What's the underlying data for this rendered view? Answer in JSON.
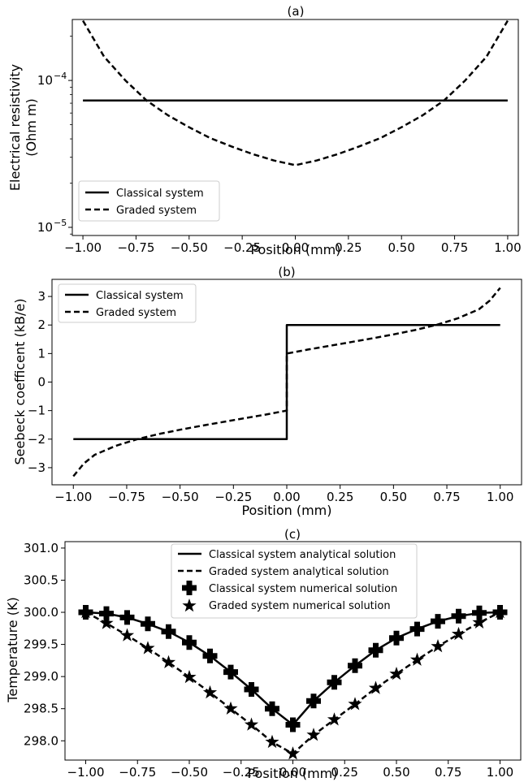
{
  "chart_data": [
    {
      "type": "line",
      "title": "(a)",
      "xlabel": "Position (mm)",
      "ylabel": [
        "Electrical resistivity",
        "(Ohm m)"
      ],
      "xlim": [
        -1.05,
        1.05
      ],
      "ylim": [
        8.8e-06,
        0.00026
      ],
      "yscale": "log",
      "x_ticks": [
        -1.0,
        -0.75,
        -0.5,
        -0.25,
        0.0,
        0.25,
        0.5,
        0.75,
        1.0
      ],
      "x_tick_labels": [
        "−1.00",
        "−0.75",
        "−0.50",
        "−0.25",
        "0.00",
        "0.25",
        "0.50",
        "0.75",
        "1.00"
      ],
      "y_ticks": [
        1e-05,
        0.0001
      ],
      "y_tick_labels": [
        {
          "base": "10",
          "exp": "−5"
        },
        {
          "base": "10",
          "exp": "−4"
        }
      ],
      "legend": {
        "position": "lower-left",
        "entries": [
          "Classical system",
          "Graded system"
        ]
      },
      "series": [
        {
          "name": "Classical system",
          "style": "solid",
          "x": [
            -1.0,
            1.0
          ],
          "y": [
            7.3e-05,
            7.3e-05
          ]
        },
        {
          "name": "Graded system",
          "style": "dashed",
          "x": [
            -1.0,
            -0.9,
            -0.8,
            -0.7,
            -0.6,
            -0.5,
            -0.4,
            -0.3,
            -0.2,
            -0.1,
            0.0,
            0.1,
            0.2,
            0.3,
            0.4,
            0.5,
            0.6,
            0.7,
            0.8,
            0.9,
            1.0
          ],
          "y": [
            0.000255,
            0.000145,
            0.0001,
            7.3e-05,
            5.8e-05,
            4.8e-05,
            4.05e-05,
            3.55e-05,
            3.15e-05,
            2.85e-05,
            2.65e-05,
            2.85e-05,
            3.15e-05,
            3.55e-05,
            4.05e-05,
            4.8e-05,
            5.8e-05,
            7.3e-05,
            0.0001,
            0.000145,
            0.000255
          ]
        }
      ]
    },
    {
      "type": "line",
      "title": "(b)",
      "xlabel": "Position (mm)",
      "ylabel": [
        "Seebeck coefficent (kB/e)"
      ],
      "xlim": [
        -1.1,
        1.1
      ],
      "ylim": [
        -3.6,
        3.6
      ],
      "yscale": "linear",
      "x_ticks": [
        -1.0,
        -0.75,
        -0.5,
        -0.25,
        0.0,
        0.25,
        0.5,
        0.75,
        1.0
      ],
      "x_tick_labels": [
        "−1.00",
        "−0.75",
        "−0.50",
        "−0.25",
        "0.00",
        "0.25",
        "0.50",
        "0.75",
        "1.00"
      ],
      "y_ticks": [
        -3,
        -2,
        -1,
        0,
        1,
        2,
        3
      ],
      "y_tick_labels": [
        "−3",
        "−2",
        "−1",
        "0",
        "1",
        "2",
        "3"
      ],
      "legend": {
        "position": "upper-left",
        "entries": [
          "Classical system",
          "Graded system"
        ]
      },
      "series": [
        {
          "name": "Classical system",
          "style": "solid",
          "x": [
            -1.0,
            0.0,
            0.0,
            1.0
          ],
          "y": [
            -2.0,
            -2.0,
            2.0,
            2.0
          ]
        },
        {
          "name": "Graded system",
          "style": "dashed",
          "x": [
            -1.0,
            -0.95,
            -0.9,
            -0.8,
            -0.7,
            -0.6,
            -0.5,
            -0.4,
            -0.3,
            -0.2,
            -0.1,
            0.0,
            0.0,
            0.1,
            0.2,
            0.3,
            0.4,
            0.5,
            0.6,
            0.7,
            0.8,
            0.9,
            0.95,
            1.0
          ],
          "y": [
            -3.3,
            -2.85,
            -2.55,
            -2.23,
            -2.0,
            -1.82,
            -1.67,
            -1.53,
            -1.4,
            -1.27,
            -1.14,
            -1.0,
            1.0,
            1.14,
            1.27,
            1.4,
            1.53,
            1.67,
            1.82,
            2.0,
            2.23,
            2.55,
            2.85,
            3.3
          ]
        }
      ]
    },
    {
      "type": "line",
      "title": "(c)",
      "xlabel": "Position (mm)",
      "ylabel": [
        "Temperature (K)"
      ],
      "xlim": [
        -1.1,
        1.1
      ],
      "ylim": [
        297.7,
        301.1
      ],
      "yscale": "linear",
      "x_ticks": [
        -1.0,
        -0.75,
        -0.5,
        -0.25,
        0.0,
        0.25,
        0.5,
        0.75,
        1.0
      ],
      "x_tick_labels": [
        "−1.00",
        "−0.75",
        "−0.50",
        "−0.25",
        "0.00",
        "0.25",
        "0.50",
        "0.75",
        "1.00"
      ],
      "y_ticks": [
        298.0,
        298.5,
        299.0,
        299.5,
        300.0,
        300.5,
        301.0
      ],
      "y_tick_labels": [
        "298.0",
        "298.5",
        "299.0",
        "299.5",
        "300.0",
        "300.5",
        "301.0"
      ],
      "legend": {
        "position": "upper-center",
        "entries": [
          "Classical system analytical solution",
          "Graded system analytical solution",
          "Classical system numerical solution",
          "Graded system numerical solution"
        ]
      },
      "series": [
        {
          "name": "Classical system analytical solution",
          "style": "solid",
          "x": [
            -1.0,
            -0.9,
            -0.8,
            -0.7,
            -0.6,
            -0.5,
            -0.4,
            -0.3,
            -0.2,
            -0.1,
            0.0,
            0.1,
            0.2,
            0.3,
            0.4,
            0.5,
            0.6,
            0.7,
            0.8,
            0.9,
            1.0
          ],
          "y": [
            300.0,
            299.98,
            299.92,
            299.82,
            299.7,
            299.53,
            299.32,
            299.07,
            298.8,
            298.5,
            298.25,
            298.62,
            298.91,
            299.17,
            299.41,
            299.6,
            299.74,
            299.86,
            299.94,
            299.99,
            300.0
          ]
        },
        {
          "name": "Graded system analytical solution",
          "style": "dashed",
          "x": [
            -1.0,
            -0.9,
            -0.8,
            -0.7,
            -0.6,
            -0.5,
            -0.4,
            -0.3,
            -0.2,
            -0.1,
            0.0,
            0.1,
            0.2,
            0.3,
            0.4,
            0.5,
            0.6,
            0.7,
            0.8,
            0.9,
            1.0
          ],
          "y": [
            300.0,
            299.83,
            299.64,
            299.44,
            299.22,
            298.99,
            298.75,
            298.5,
            298.25,
            297.98,
            297.8,
            298.09,
            298.33,
            298.57,
            298.82,
            299.04,
            299.26,
            299.47,
            299.66,
            299.84,
            300.0
          ]
        },
        {
          "name": "Classical system numerical solution",
          "style": "marker-plus",
          "x": [
            -1.0,
            -0.9,
            -0.8,
            -0.7,
            -0.6,
            -0.5,
            -0.4,
            -0.3,
            -0.2,
            -0.1,
            0.0,
            0.1,
            0.2,
            0.3,
            0.4,
            0.5,
            0.6,
            0.7,
            0.8,
            0.9,
            1.0
          ],
          "y": [
            300.0,
            299.98,
            299.92,
            299.82,
            299.7,
            299.53,
            299.32,
            299.07,
            298.8,
            298.5,
            298.25,
            298.62,
            298.91,
            299.17,
            299.41,
            299.6,
            299.74,
            299.86,
            299.94,
            299.99,
            300.0
          ]
        },
        {
          "name": "Graded system numerical solution",
          "style": "marker-star",
          "x": [
            -1.0,
            -0.9,
            -0.8,
            -0.7,
            -0.6,
            -0.5,
            -0.4,
            -0.3,
            -0.2,
            -0.1,
            0.0,
            0.1,
            0.2,
            0.3,
            0.4,
            0.5,
            0.6,
            0.7,
            0.8,
            0.9,
            1.0
          ],
          "y": [
            300.0,
            299.83,
            299.64,
            299.44,
            299.22,
            298.99,
            298.75,
            298.5,
            298.25,
            297.98,
            297.8,
            298.09,
            298.33,
            298.57,
            298.82,
            299.04,
            299.26,
            299.47,
            299.66,
            299.84,
            300.0
          ]
        }
      ]
    }
  ]
}
